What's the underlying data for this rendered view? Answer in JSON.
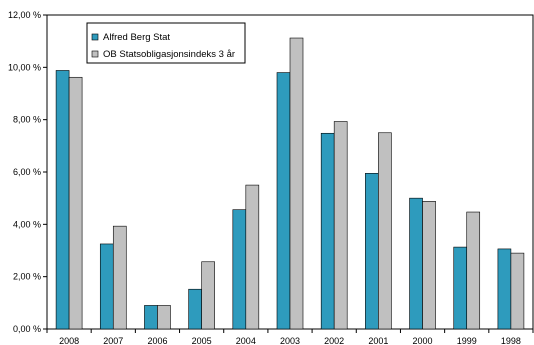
{
  "chart_data": {
    "type": "bar",
    "categories": [
      "2008",
      "2007",
      "2006",
      "2005",
      "2004",
      "2003",
      "2002",
      "2001",
      "2000",
      "1999",
      "1998"
    ],
    "series": [
      {
        "name": "Alfred Berg Stat",
        "color": "#2e9bbd",
        "values": [
          9.88,
          3.25,
          0.9,
          1.52,
          4.56,
          9.8,
          7.48,
          5.95,
          5.0,
          3.13,
          3.06
        ]
      },
      {
        "name": "OB Statsobligasjonsindeks 3 år",
        "color": "#c0c0c0",
        "values": [
          9.62,
          3.93,
          0.9,
          2.57,
          5.5,
          11.12,
          7.93,
          7.5,
          4.88,
          4.47,
          2.9
        ]
      }
    ],
    "yticks": [
      "0,00 %",
      "2,00 %",
      "4,00 %",
      "6,00 %",
      "8,00 %",
      "10,00 %",
      "12,00 %"
    ],
    "ylim": [
      0,
      12
    ],
    "grid": false,
    "legend_position": "top-left"
  }
}
